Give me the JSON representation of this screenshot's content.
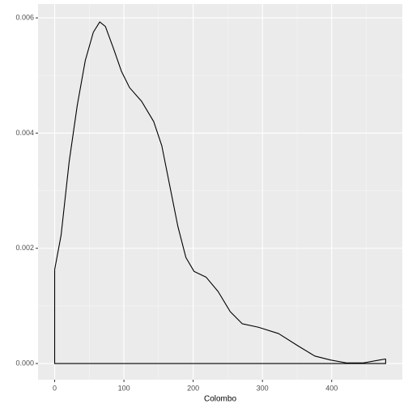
{
  "chart_data": {
    "type": "density",
    "x_label": "Colombo",
    "x": [
      0,
      9.3,
      20.9,
      32.6,
      44.2,
      55.8,
      65.1,
      73.3,
      84.9,
      96.5,
      108.1,
      125.6,
      143,
      154.7,
      166.3,
      177.9,
      189.5,
      201.2,
      218.6,
      236,
      253.5,
      270.9,
      294.2,
      323.3,
      352.3,
      375.6,
      398.8,
      422,
      445,
      468.6,
      477.9
    ],
    "values": [
      0.00163,
      0.00223,
      0.0035,
      0.00448,
      0.00526,
      0.00575,
      0.00593,
      0.00585,
      0.00547,
      0.00507,
      0.00479,
      0.00455,
      0.0042,
      0.00378,
      0.00308,
      0.00238,
      0.00184,
      0.0016,
      0.0015,
      0.00125,
      0.0009,
      0.00069,
      0.00063,
      0.00052,
      0.0003,
      0.00013,
      6e-05,
      1e-05,
      1e-05,
      6e-05,
      8e-05
    ],
    "color": "#000000",
    "xlim": [
      -24,
      502
    ],
    "xticks": [
      0,
      100,
      200,
      300,
      400
    ],
    "ylim": [
      -0.00028,
      0.00624
    ],
    "yticks": [
      {
        "value": 0,
        "label": "0.000"
      },
      {
        "value": 0.002,
        "label": "0.002"
      },
      {
        "value": 0.004,
        "label": "0.004"
      },
      {
        "value": 0.006,
        "label": "0.006"
      }
    ],
    "grid": true
  }
}
